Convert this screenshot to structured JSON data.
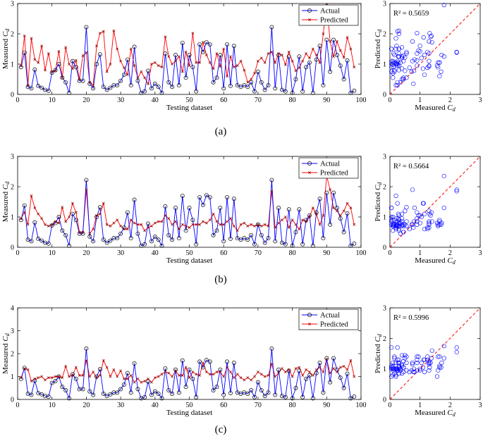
{
  "figure": {
    "dataset_ids": [
      1,
      2,
      3,
      4,
      5,
      6,
      7,
      8,
      9,
      10,
      11,
      12,
      13,
      14,
      15,
      16,
      17,
      18,
      19,
      20,
      21,
      22,
      23,
      24,
      25,
      26,
      27,
      28,
      29,
      30,
      31,
      32,
      33,
      34,
      35,
      36,
      37,
      38,
      39,
      40,
      41,
      42,
      43,
      44,
      45,
      46,
      47,
      48,
      49,
      50,
      51,
      52,
      53,
      54,
      55,
      56,
      57,
      58,
      59,
      60,
      61,
      62,
      63,
      64,
      65,
      66,
      67,
      68,
      69,
      70,
      71,
      72,
      73,
      74,
      75,
      76,
      77,
      78,
      79,
      80,
      81,
      82,
      83,
      84,
      85,
      86,
      87,
      88,
      89,
      90,
      91,
      92,
      93,
      94,
      95,
      96,
      97,
      98
    ],
    "actual": [
      0.9,
      1.38,
      0.25,
      0.2,
      0.82,
      0.28,
      0.22,
      0.15,
      0.12,
      0.72,
      0.8,
      1.0,
      0.55,
      0.4,
      0.05,
      1.1,
      0.9,
      0.45,
      0.45,
      2.22,
      0.35,
      0.2,
      1.0,
      1.32,
      0.25,
      0.15,
      0.22,
      0.3,
      0.3,
      0.45,
      0.65,
      1.15,
      0.3,
      1.57,
      0.45,
      0.05,
      0.1,
      0.78,
      0.2,
      0.35,
      0.25,
      0.05,
      1.35,
      0.4,
      0.25,
      1.3,
      0.3,
      1.7,
      0.55,
      1.3,
      0.9,
      0.1,
      1.65,
      1.4,
      1.72,
      1.65,
      0.4,
      0.55,
      1.3,
      0.2,
      1.65,
      0.28,
      1.6,
      0.3,
      0.25,
      0.3,
      0.25,
      0.4,
      0.1,
      0.75,
      0.4,
      0.15,
      0.3,
      2.22,
      0.2,
      1.3,
      0.15,
      0.1,
      1.25,
      0.05,
      0.5,
      1.25,
      0.1,
      0.9,
      1.05,
      0.05,
      1.15,
      1.6,
      0.3,
      1.8,
      0.75,
      1.8,
      1.3,
      0.95,
      0.5,
      1.12,
      0.05,
      0.12
    ]
  },
  "chart_data": [
    {
      "type": "line",
      "panel": "a",
      "title": "",
      "xlabel": "Testing dataset",
      "ylabel": "Measured C_d",
      "xlim": [
        0,
        100
      ],
      "ylim": [
        0,
        3
      ],
      "xticks": [
        0,
        10,
        20,
        30,
        40,
        50,
        60,
        70,
        80,
        90,
        100
      ],
      "yticks": [
        0,
        1,
        2,
        3
      ],
      "legend": {
        "position": "top-right",
        "entries": [
          "Actual",
          "Predicted"
        ]
      },
      "series": [
        {
          "name": "Actual",
          "color": "#0000ff",
          "marker": "circle",
          "ref": "figure.actual"
        },
        {
          "name": "Predicted",
          "color": "#ff0000",
          "marker": "x",
          "values": [
            0.95,
            1.93,
            0.3,
            1.85,
            1.15,
            1.05,
            1.6,
            0.8,
            1.35,
            0.75,
            0.78,
            1.42,
            0.55,
            1.55,
            1.0,
            0.85,
            1.12,
            0.5,
            1.28,
            1.38,
            0.4,
            0.3,
            1.6,
            2.02,
            2.08,
            0.75,
            1.0,
            2.1,
            1.5,
            1.1,
            0.88,
            0.65,
            1.5,
            0.95,
            0.55,
            0.75,
            0.55,
            0.35,
            1.0,
            1.05,
            0.95,
            0.9,
            1.9,
            1.25,
            1.0,
            1.1,
            1.25,
            0.75,
            1.4,
            0.95,
            2.02,
            1.05,
            1.05,
            1.72,
            1.3,
            1.05,
            0.85,
            1.35,
            0.92,
            1.5,
            0.6,
            1.25,
            0.9,
            0.95,
            1.1,
            0.8,
            0.4,
            0.5,
            0.7,
            1.1,
            1.2,
            1.05,
            1.35,
            1.4,
            1.05,
            1.35,
            1.3,
            0.98,
            1.4,
            1.1,
            0.78,
            0.88,
            1.1,
            1.35,
            1.2,
            1.5,
            1.3,
            1.05,
            2.0,
            2.95,
            1.75,
            1.25,
            1.75,
            1.45,
            1.22,
            1.88,
            1.5,
            0.9
          ]
        }
      ]
    },
    {
      "type": "scatter",
      "panel": "a",
      "xlabel": "Measured C_d",
      "ylabel": "Predicted C_d",
      "xlim": [
        0,
        3
      ],
      "ylim": [
        0,
        3
      ],
      "ticks": [
        0,
        1,
        2,
        3
      ],
      "annotation": "R² = 0.5659",
      "reference_line": "y = x"
    },
    {
      "type": "line",
      "panel": "b",
      "xlabel": "Testing dataset",
      "ylabel": "Measured C_d",
      "xlim": [
        0,
        100
      ],
      "ylim": [
        0,
        3
      ],
      "xticks": [
        0,
        10,
        20,
        30,
        40,
        50,
        60,
        70,
        80,
        90,
        100
      ],
      "yticks": [
        0,
        1,
        2,
        3
      ],
      "legend": {
        "position": "top-right",
        "entries": [
          "Actual",
          "Predicted"
        ]
      },
      "series": [
        {
          "name": "Actual",
          "color": "#0000ff",
          "marker": "circle",
          "ref": "figure.actual"
        },
        {
          "name": "Predicted",
          "color": "#ff0000",
          "marker": "x",
          "values": [
            0.95,
            1.15,
            0.75,
            1.7,
            1.3,
            1.1,
            0.95,
            0.75,
            0.7,
            0.75,
            0.85,
            0.8,
            1.32,
            0.85,
            1.0,
            1.45,
            1.15,
            0.5,
            0.5,
            1.9,
            0.45,
            0.6,
            1.05,
            1.1,
            1.45,
            0.75,
            0.7,
            0.8,
            0.9,
            0.7,
            0.6,
            0.6,
            0.9,
            0.8,
            0.75,
            0.75,
            0.55,
            0.65,
            0.7,
            0.8,
            0.85,
            0.85,
            1.05,
            0.95,
            0.75,
            0.85,
            0.6,
            0.75,
            0.7,
            0.65,
            0.75,
            0.75,
            0.75,
            0.85,
            0.8,
            0.9,
            1.1,
            0.85,
            0.75,
            0.75,
            0.85,
            0.95,
            0.7,
            0.55,
            0.75,
            0.8,
            0.7,
            0.75,
            0.7,
            0.75,
            0.7,
            0.75,
            0.7,
            1.85,
            0.65,
            0.8,
            0.9,
            1.0,
            0.65,
            0.9,
            0.75,
            0.6,
            0.9,
            0.85,
            1.0,
            1.3,
            1.1,
            0.75,
            1.05,
            2.35,
            1.9,
            1.3,
            1.2,
            1.05,
            1.2,
            1.45,
            1.3,
            0.75
          ]
        }
      ]
    },
    {
      "type": "scatter",
      "panel": "b",
      "xlabel": "Measured C_d",
      "ylabel": "Predicted C_d",
      "xlim": [
        0,
        3
      ],
      "ylim": [
        0,
        3
      ],
      "ticks": [
        0,
        1,
        2,
        3
      ],
      "annotation": "R² = 0.5664",
      "reference_line": "y = x"
    },
    {
      "type": "line",
      "panel": "c",
      "xlabel": "Testing dataset",
      "ylabel": "Measured C_d",
      "xlim": [
        0,
        100
      ],
      "ylim": [
        0,
        4
      ],
      "xticks": [
        0,
        10,
        20,
        30,
        40,
        50,
        60,
        70,
        80,
        90,
        100
      ],
      "yticks": [
        0,
        1,
        2,
        3,
        4
      ],
      "legend": {
        "position": "top-right",
        "entries": [
          "Actual",
          "Predicted"
        ]
      },
      "series": [
        {
          "name": "Actual",
          "color": "#0000ff",
          "marker": "circle",
          "ref": "figure.actual"
        },
        {
          "name": "Predicted",
          "color": "#ff0000",
          "marker": "x",
          "values": [
            0.95,
            1.35,
            1.3,
            0.8,
            0.9,
            0.95,
            1.0,
            0.85,
            0.95,
            0.95,
            1.0,
            1.0,
            0.95,
            1.45,
            1.0,
            1.05,
            1.4,
            1.05,
            1.05,
            1.7,
            1.0,
            1.2,
            0.95,
            1.05,
            1.7,
            1.4,
            1.0,
            1.3,
            1.0,
            1.25,
            0.9,
            0.9,
            1.05,
            0.75,
            0.9,
            0.75,
            0.8,
            0.9,
            0.75,
            0.95,
            1.0,
            1.1,
            1.2,
            1.15,
            1.0,
            1.25,
            1.05,
            1.05,
            1.4,
            0.95,
            1.2,
            1.1,
            1.05,
            1.6,
            1.2,
            1.1,
            1.1,
            1.2,
            1.2,
            1.0,
            1.4,
            1.2,
            0.95,
            1.1,
            0.95,
            0.85,
            0.95,
            0.85,
            1.0,
            1.2,
            1.1,
            1.0,
            1.05,
            1.55,
            1.0,
            1.15,
            1.35,
            1.2,
            1.3,
            1.0,
            1.35,
            1.4,
            1.05,
            1.3,
            1.2,
            1.05,
            1.3,
            1.4,
            1.2,
            1.75,
            1.15,
            1.35,
            1.2,
            1.4,
            1.45,
            1.3,
            1.7,
            1.0
          ]
        }
      ]
    },
    {
      "type": "scatter",
      "panel": "c",
      "xlabel": "Measured C_d",
      "ylabel": "Predicted C_d",
      "xlim": [
        0,
        3
      ],
      "ylim": [
        0,
        3
      ],
      "ticks": [
        0,
        1,
        2,
        3
      ],
      "annotation": "R² = 0.5996",
      "reference_line": "y = x"
    }
  ],
  "captions": [
    "(a)",
    "(b)",
    "(c)"
  ],
  "colors": {
    "actual": "#0000ff",
    "predicted": "#ff0000",
    "identity_line": "#ff0000"
  }
}
